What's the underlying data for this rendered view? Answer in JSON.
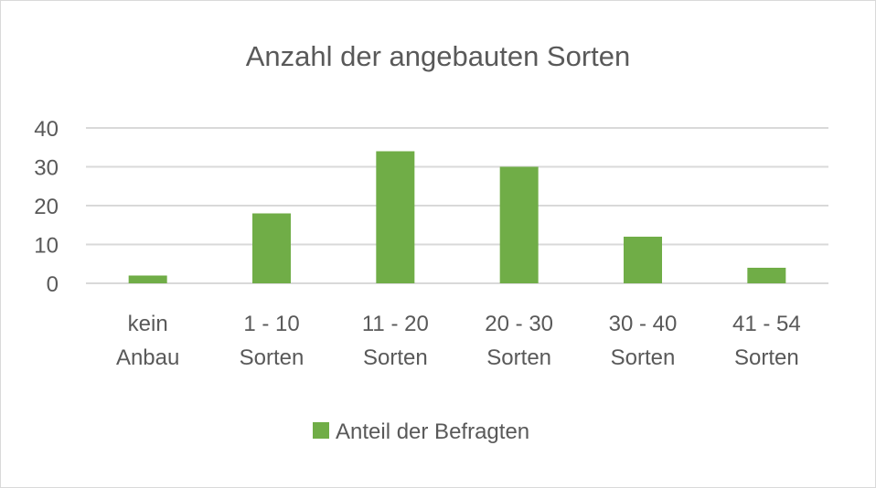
{
  "chart_data": {
    "type": "bar",
    "title": "Anzahl der angebauten Sorten",
    "xlabel": "",
    "ylabel": "",
    "categories": [
      [
        "kein",
        "Anbau"
      ],
      [
        "1 - 10",
        "Sorten"
      ],
      [
        "11 - 20",
        "Sorten"
      ],
      [
        "20 - 30",
        "Sorten"
      ],
      [
        "30 - 40",
        "Sorten"
      ],
      [
        "41 - 54",
        "Sorten"
      ]
    ],
    "series": [
      {
        "name": "Anteil der Befragten",
        "values": [
          2,
          18,
          34,
          30,
          12,
          4
        ],
        "color": "#70ad47"
      }
    ],
    "ylim": [
      0,
      40
    ],
    "yticks": [
      0,
      10,
      20,
      30,
      40
    ],
    "grid": true,
    "legend_position": "bottom"
  }
}
